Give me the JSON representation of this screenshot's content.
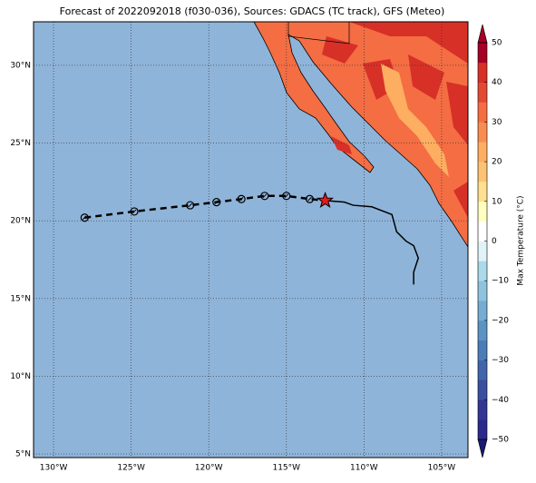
{
  "chart_data": {
    "type": "map",
    "title": "Forecast of 2022092018 (f030-036), Sources: GDACS (TC track), GFS (Meteo)",
    "xlim": [
      -131.29,
      -103.3
    ],
    "ylim": [
      4.77,
      32.8
    ],
    "xticks": [
      {
        "value": -130,
        "label": "130°W"
      },
      {
        "value": -125,
        "label": "125°W"
      },
      {
        "value": -120,
        "label": "120°W"
      },
      {
        "value": -115,
        "label": "115°W"
      },
      {
        "value": -110,
        "label": "110°W"
      },
      {
        "value": -105,
        "label": "105°W"
      }
    ],
    "yticks": [
      {
        "value": 5,
        "label": "5°N"
      },
      {
        "value": 10,
        "label": "10°N"
      },
      {
        "value": 15,
        "label": "15°N"
      },
      {
        "value": 20,
        "label": "20°N"
      },
      {
        "value": 25,
        "label": "25°N"
      },
      {
        "value": 30,
        "label": "30°N"
      }
    ],
    "grid": true,
    "ocean_color": "#8fb4d9",
    "forecast_track": {
      "color": "#000000",
      "lon": [
        -128.0,
        -124.8,
        -121.2,
        -119.5,
        -117.9,
        -116.4,
        -115.0,
        -113.5
      ],
      "lat": [
        20.2,
        20.6,
        21.0,
        21.2,
        21.4,
        21.6,
        21.6,
        21.4
      ]
    },
    "past_track": {
      "color": "#000000",
      "lon": [
        -112.5,
        -111.25,
        -110.7,
        -109.5,
        -108.2,
        -107.9,
        -107.3,
        -106.8,
        -106.5,
        -106.8,
        -106.8
      ],
      "lat": [
        21.3,
        21.2,
        21.0,
        20.9,
        20.4,
        19.3,
        18.7,
        18.4,
        17.6,
        16.7,
        15.9
      ]
    },
    "current_position": {
      "color": "#e41a1c",
      "lon": -112.5,
      "lat": 21.3
    },
    "colorbar": {
      "label": "Max Temperature (°C)",
      "clim": [
        -50,
        50
      ],
      "colors": [
        "#2b2a8c",
        "#313695",
        "#3a4fa0",
        "#4065ab",
        "#4a7db8",
        "#5b93c3",
        "#74add1",
        "#8fc3dd",
        "#abd9e9",
        "#e0f3f8",
        "#ffffff",
        "#ffffbf",
        "#fee090",
        "#fdc374",
        "#fdae61",
        "#f88d52",
        "#f46d43",
        "#e34a33",
        "#d73027",
        "#a50026"
      ],
      "ticks": [
        {
          "value": -50,
          "label": "−50"
        },
        {
          "value": -40,
          "label": "−40"
        },
        {
          "value": -30,
          "label": "−30"
        },
        {
          "value": -20,
          "label": "−20"
        },
        {
          "value": -10,
          "label": "−10"
        },
        0,
        10,
        20,
        30,
        40,
        50
      ]
    }
  }
}
